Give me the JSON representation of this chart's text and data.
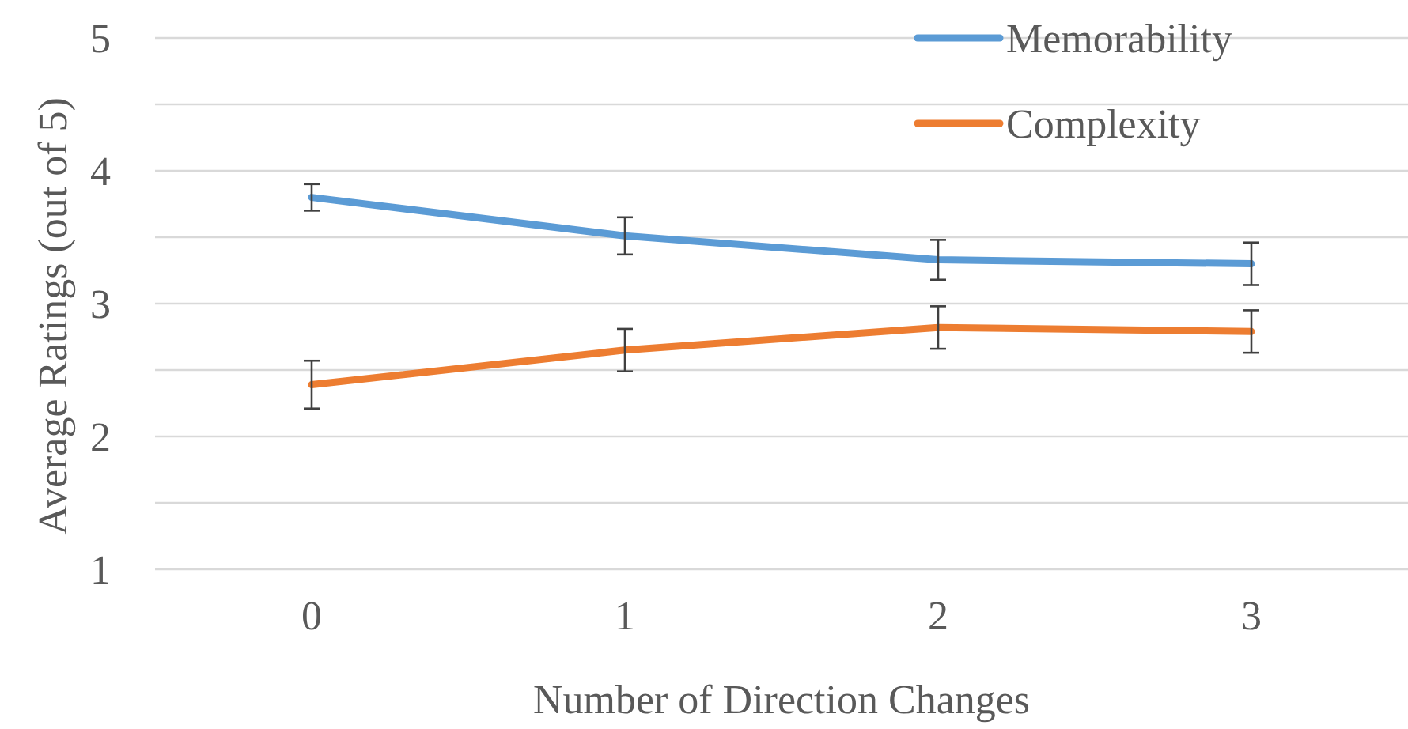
{
  "chart_data": {
    "type": "line",
    "xlabel": "Number of Direction Changes",
    "ylabel": "Average Ratings (out of 5)",
    "categories": [
      "0",
      "1",
      "2",
      "3"
    ],
    "ylim": [
      1,
      5
    ],
    "yticks": [
      1,
      {
        "value": 1.5,
        "label": null
      },
      2,
      {
        "value": 2.5,
        "label": null
      },
      3,
      {
        "value": 3.5,
        "label": null
      },
      4,
      {
        "value": 4.5,
        "label": null
      },
      5
    ],
    "grid": "y",
    "legend": "top right",
    "marker": "none",
    "line_style": "solid",
    "series": [
      {
        "name": "Memorability",
        "color": "#5b9bd5",
        "values": [
          3.8,
          3.51,
          3.33,
          3.3
        ],
        "errors": [
          0.1,
          0.14,
          0.15,
          0.16
        ]
      },
      {
        "name": "Complexity",
        "color": "#ed7d31",
        "values": [
          2.39,
          2.65,
          2.82,
          2.79
        ],
        "errors": [
          0.18,
          0.16,
          0.16,
          0.16
        ]
      }
    ]
  }
}
